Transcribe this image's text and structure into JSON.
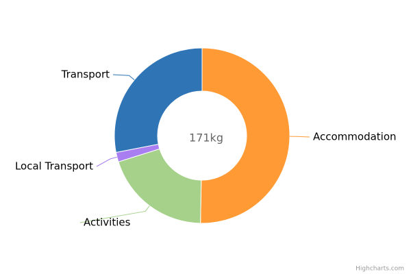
{
  "chart_data": {
    "type": "pie",
    "center_label": "171kg",
    "categories": [
      "Accommodation",
      "Activities",
      "Local Transport",
      "Transport"
    ],
    "values": [
      86,
      34,
      3,
      48
    ],
    "colors": [
      "#ff9a35",
      "#a6d18b",
      "#a87ef0",
      "#2f74b5"
    ],
    "credits": "Highcharts.com"
  }
}
